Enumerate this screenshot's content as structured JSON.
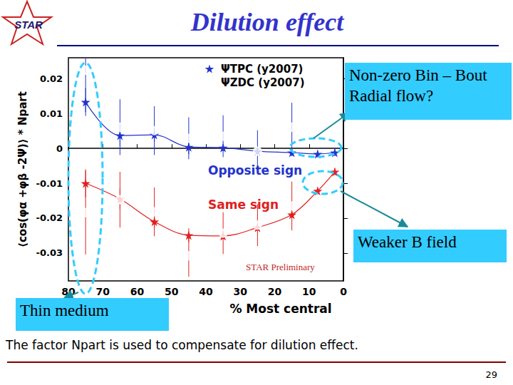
{
  "header": {
    "title": "Dilution effect",
    "logo": "STAR"
  },
  "chart_data": {
    "type": "scatter",
    "xlabel": "% Most central",
    "ylabel": "⟨cos(φα +φβ -2Ψ)⟩ * Npart",
    "xlim": [
      80,
      0
    ],
    "xticks": [
      80,
      70,
      60,
      50,
      40,
      30,
      20,
      10,
      0
    ],
    "ylim": [
      -0.038,
      0.026
    ],
    "yticks": [
      -0.03,
      -0.02,
      -0.01,
      0,
      0.01,
      0.02
    ],
    "grid": false,
    "legend": "top",
    "series": [
      {
        "name": "ΨTPC (y2007)",
        "type": "line",
        "marker": "star",
        "color": "#2233cc",
        "x": [
          75,
          65,
          55,
          45,
          35,
          25,
          15,
          7.5,
          2.5
        ],
        "values": [
          0.0133,
          0.0037,
          0.0039,
          0.0004,
          0.0002,
          -0.0008,
          -0.0012,
          -0.0016,
          -0.0012
        ],
        "errors": [
          0.004,
          0.003,
          0.002,
          0.002,
          0.001,
          0.001,
          0.001,
          0.001,
          0.001
        ]
      },
      {
        "name": "ΨZDC (y2007)",
        "type": "scatter",
        "marker": "circle_open",
        "color": "#2233cc",
        "x": [
          75,
          65,
          55,
          45,
          35,
          25,
          15
        ],
        "values": [
          0.0224,
          0.0061,
          0.0051,
          0.0029,
          0.0035,
          -0.0008,
          0.0061
        ],
        "errors": [
          0.012,
          0.008,
          0.007,
          0.006,
          0.006,
          0.006,
          0.007
        ]
      },
      {
        "name": "ΨTPC (y2007)",
        "type": "line",
        "marker": "star",
        "color": "#e02020",
        "x": [
          75,
          65,
          55,
          45,
          35,
          25,
          15,
          7.5,
          2.5
        ],
        "values": [
          -0.01,
          -0.0145,
          -0.021,
          -0.0249,
          -0.0251,
          -0.0227,
          -0.019,
          -0.0122,
          -0.0067
        ],
        "errors": [
          0.004,
          0.003,
          0.002,
          0.002,
          0.001,
          0.001,
          0.001,
          0.001,
          0.001
        ]
      },
      {
        "name": "ΨZDC (y2007)",
        "type": "scatter",
        "marker": "circle_open",
        "color": "#e02020",
        "x": [
          75,
          65,
          55,
          45,
          35,
          25,
          15
        ],
        "values": [
          -0.0184,
          -0.0147,
          -0.0182,
          -0.0308,
          -0.0243,
          -0.022,
          -0.0165
        ],
        "errors": [
          0.012,
          0.008,
          0.007,
          0.006,
          0.006,
          0.006,
          0.007
        ]
      }
    ],
    "annotations": [
      {
        "text": "Opposite sign",
        "color": "#2233cc"
      },
      {
        "text": "Same sign",
        "color": "#e02020"
      },
      {
        "text": "STAR Preliminary",
        "color": "#c02828"
      }
    ]
  },
  "callouts": [
    {
      "lines": [
        "Non-zero Bin – Bout",
        "Radial flow?"
      ]
    },
    {
      "lines": [
        "Weaker B field"
      ]
    },
    {
      "lines": [
        "Thin medium"
      ]
    }
  ],
  "footer": {
    "text": "The factor Npart is used to compensate for dilution effect.",
    "page": "29"
  }
}
